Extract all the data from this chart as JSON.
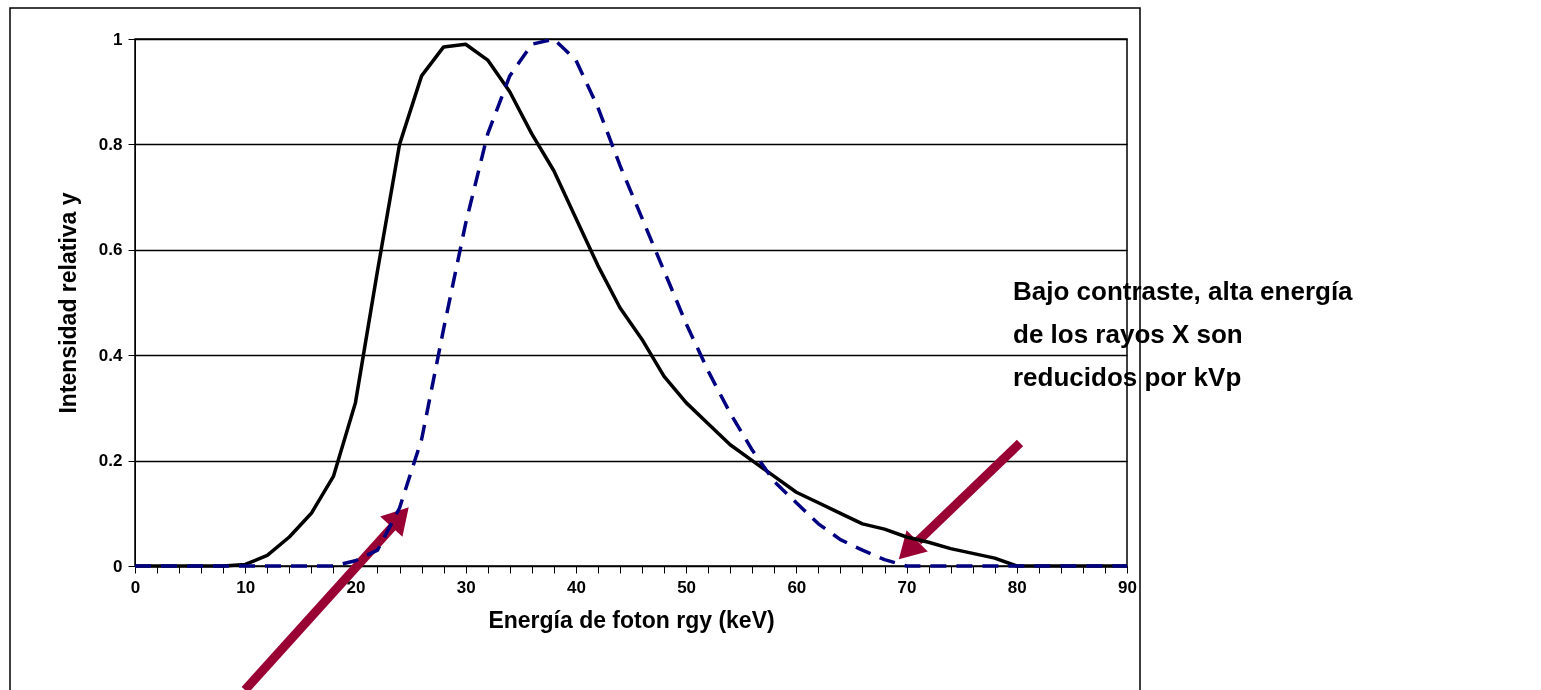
{
  "chart_data": {
    "type": "line",
    "xlabel": "Energía de foton rgy (keV)",
    "ylabel": "Intensidad relativa y",
    "annotations": [
      "Bajo contraste, alta energía\nde los rayos X son\nreducidos por kVp"
    ],
    "x": [
      0,
      2,
      4,
      6,
      8,
      10,
      12,
      14,
      16,
      18,
      20,
      22,
      24,
      26,
      28,
      30,
      32,
      34,
      36,
      38,
      40,
      42,
      44,
      46,
      48,
      50,
      52,
      54,
      56,
      58,
      60,
      62,
      64,
      66,
      68,
      70,
      72,
      74,
      76,
      78,
      80,
      82,
      84,
      86,
      88,
      90
    ],
    "series": [
      {
        "color": "#000000",
        "line_style": "solid",
        "values": [
          0,
          0,
          0,
          0,
          0,
          0.003,
          0.02,
          0.055,
          0.1,
          0.17,
          0.31,
          0.56,
          0.8,
          0.93,
          0.985,
          0.99,
          0.96,
          0.9,
          0.82,
          0.75,
          0.66,
          0.57,
          0.49,
          0.43,
          0.36,
          0.31,
          0.27,
          0.23,
          0.2,
          0.17,
          0.14,
          0.12,
          0.1,
          0.08,
          0.07,
          0.055,
          0.045,
          0.033,
          0.024,
          0.015,
          0,
          0,
          0,
          0,
          0,
          0
        ]
      },
      {
        "color": "#000080",
        "line_style": "dashed",
        "values": [
          0,
          0,
          0,
          0,
          0,
          0,
          0,
          0,
          0,
          0,
          0.01,
          0.03,
          0.11,
          0.24,
          0.45,
          0.65,
          0.82,
          0.93,
          0.99,
          1.0,
          0.96,
          0.87,
          0.76,
          0.66,
          0.56,
          0.46,
          0.37,
          0.29,
          0.22,
          0.16,
          0.12,
          0.08,
          0.05,
          0.03,
          0.012,
          0,
          0,
          0,
          0,
          0,
          0,
          0,
          0,
          0,
          0,
          0
        ]
      }
    ],
    "xlim": [
      0,
      90
    ],
    "ylim": [
      0,
      1
    ],
    "xticks": [
      0,
      {
        "value": 2,
        "label": null
      },
      {
        "value": 4,
        "label": null
      },
      {
        "value": 6,
        "label": null
      },
      {
        "value": 8,
        "label": null
      },
      10,
      {
        "value": 12,
        "label": null
      },
      {
        "value": 14,
        "label": null
      },
      {
        "value": 16,
        "label": null
      },
      {
        "value": 18,
        "label": null
      },
      20,
      {
        "value": 22,
        "label": null
      },
      {
        "value": 24,
        "label": null
      },
      {
        "value": 26,
        "label": null
      },
      {
        "value": 28,
        "label": null
      },
      30,
      {
        "value": 32,
        "label": null
      },
      {
        "value": 34,
        "label": null
      },
      {
        "value": 36,
        "label": null
      },
      {
        "value": 38,
        "label": null
      },
      40,
      {
        "value": 42,
        "label": null
      },
      {
        "value": 44,
        "label": null
      },
      {
        "value": 46,
        "label": null
      },
      {
        "value": 48,
        "label": null
      },
      50,
      {
        "value": 52,
        "label": null
      },
      {
        "value": 54,
        "label": null
      },
      {
        "value": 56,
        "label": null
      },
      {
        "value": 58,
        "label": null
      },
      60,
      {
        "value": 62,
        "label": null
      },
      {
        "value": 64,
        "label": null
      },
      {
        "value": 66,
        "label": null
      },
      {
        "value": 68,
        "label": null
      },
      70,
      {
        "value": 72,
        "label": null
      },
      {
        "value": 74,
        "label": null
      },
      {
        "value": 76,
        "label": null
      },
      {
        "value": 78,
        "label": null
      },
      80,
      {
        "value": 82,
        "label": null
      },
      {
        "value": 84,
        "label": null
      },
      {
        "value": 86,
        "label": null
      },
      {
        "value": 88,
        "label": null
      },
      90
    ],
    "yticks": [
      0,
      0.2,
      0.4,
      0.6,
      0.8,
      1
    ],
    "grid": "y",
    "marker": "none"
  }
}
